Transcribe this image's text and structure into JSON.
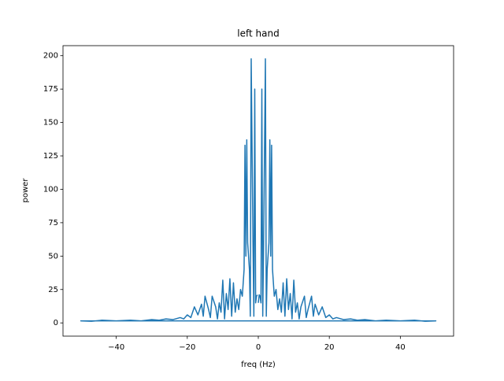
{
  "chart_data": {
    "type": "line",
    "title": "left hand",
    "xlabel": "freq (Hz)",
    "ylabel": "power",
    "color": "#1f77b4",
    "x": [
      0,
      0.25,
      0.5,
      0.75,
      1,
      1.25,
      1.5,
      2,
      2.25,
      2.5,
      3,
      3.25,
      3.5,
      3.75,
      4,
      4.5,
      5,
      5.5,
      6,
      6.5,
      7,
      7.5,
      8,
      8.5,
      9,
      9.5,
      10,
      10.5,
      11,
      11.5,
      12,
      13,
      13.5,
      14,
      15,
      15.5,
      16,
      17,
      18,
      19,
      20,
      21,
      22,
      24,
      26,
      28,
      30,
      33,
      36,
      40,
      44,
      47,
      50,
      -50,
      -47,
      -44,
      -40,
      -36,
      -33,
      -30,
      -28,
      -26,
      -24,
      -22,
      -21,
      -20,
      -19,
      -18,
      -17,
      -16,
      -15.5,
      -15,
      -14,
      -13.5,
      -13,
      -12,
      -11.5,
      -11,
      -10.5,
      -10,
      -9.5,
      -9,
      -8.5,
      -8,
      -7.5,
      -7,
      -6.5,
      -6,
      -5.5,
      -5,
      -4.5,
      -4,
      -3.75,
      -3.5,
      -3.25,
      -3,
      -2.5,
      -2.25,
      -2,
      -1.5,
      -1.25,
      -1,
      -0.75,
      -0.5,
      -0.25
    ],
    "values": [
      15,
      21,
      20,
      15,
      175,
      5,
      60,
      197.6,
      5,
      40,
      60,
      137,
      50,
      133,
      40,
      20,
      25,
      10,
      18,
      8,
      30,
      5,
      33,
      10,
      22,
      3,
      32,
      8,
      15,
      3,
      12,
      20,
      4,
      10,
      20,
      5,
      14,
      6,
      12,
      4,
      6,
      3,
      4,
      2.5,
      3,
      2,
      2.5,
      1.5,
      2,
      1.5,
      2,
      1.2,
      1.5,
      1.5,
      1.2,
      2,
      1.5,
      2,
      1.5,
      2.5,
      2,
      3,
      2.5,
      4,
      3,
      6,
      4,
      12,
      6,
      14,
      5,
      20,
      10,
      4,
      20,
      12,
      3,
      15,
      8,
      32,
      3,
      22,
      10,
      33,
      5,
      30,
      8,
      18,
      10,
      25,
      20,
      40,
      133,
      50,
      137,
      60,
      40,
      5,
      197.6,
      60,
      5,
      175,
      15,
      20,
      21
    ],
    "xlim": [
      -55,
      55
    ],
    "ylim": [
      -9.9,
      207.5
    ],
    "xticks": [
      {
        "value": -40,
        "label": "−40"
      },
      {
        "value": -20,
        "label": "−20"
      },
      0,
      20,
      40
    ],
    "yticks": [
      0,
      25,
      50,
      75,
      100,
      125,
      150,
      175,
      200
    ]
  }
}
